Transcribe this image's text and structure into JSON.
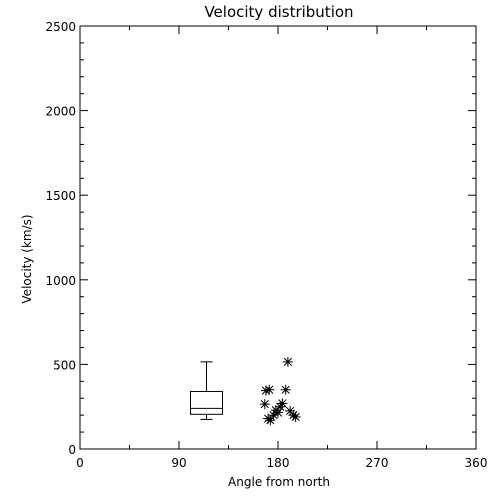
{
  "chart_data": {
    "type": "scatter",
    "title": "Velocity distribution",
    "xlabel": "Angle from north",
    "ylabel": "Velocity (km/s)",
    "xlim": [
      0,
      360
    ],
    "ylim": [
      0,
      2500
    ],
    "xticks": [
      0,
      90,
      180,
      270,
      360
    ],
    "yticks": [
      0,
      500,
      1000,
      1500,
      2000,
      2500
    ],
    "grid": false,
    "boxplot": {
      "x": 115,
      "whisker_low": 175,
      "q1": 205,
      "median": 240,
      "q3": 340,
      "whisker_high": 515
    },
    "points": [
      {
        "x": 169,
        "y": 345
      },
      {
        "x": 172,
        "y": 350
      },
      {
        "x": 168,
        "y": 265
      },
      {
        "x": 171,
        "y": 180
      },
      {
        "x": 173,
        "y": 170
      },
      {
        "x": 176,
        "y": 200
      },
      {
        "x": 178,
        "y": 230
      },
      {
        "x": 180,
        "y": 215
      },
      {
        "x": 182,
        "y": 250
      },
      {
        "x": 184,
        "y": 270
      },
      {
        "x": 187,
        "y": 350
      },
      {
        "x": 189,
        "y": 515
      },
      {
        "x": 191,
        "y": 225
      },
      {
        "x": 194,
        "y": 200
      },
      {
        "x": 196,
        "y": 190
      }
    ],
    "marker": "asterisk",
    "color": "#000000"
  }
}
